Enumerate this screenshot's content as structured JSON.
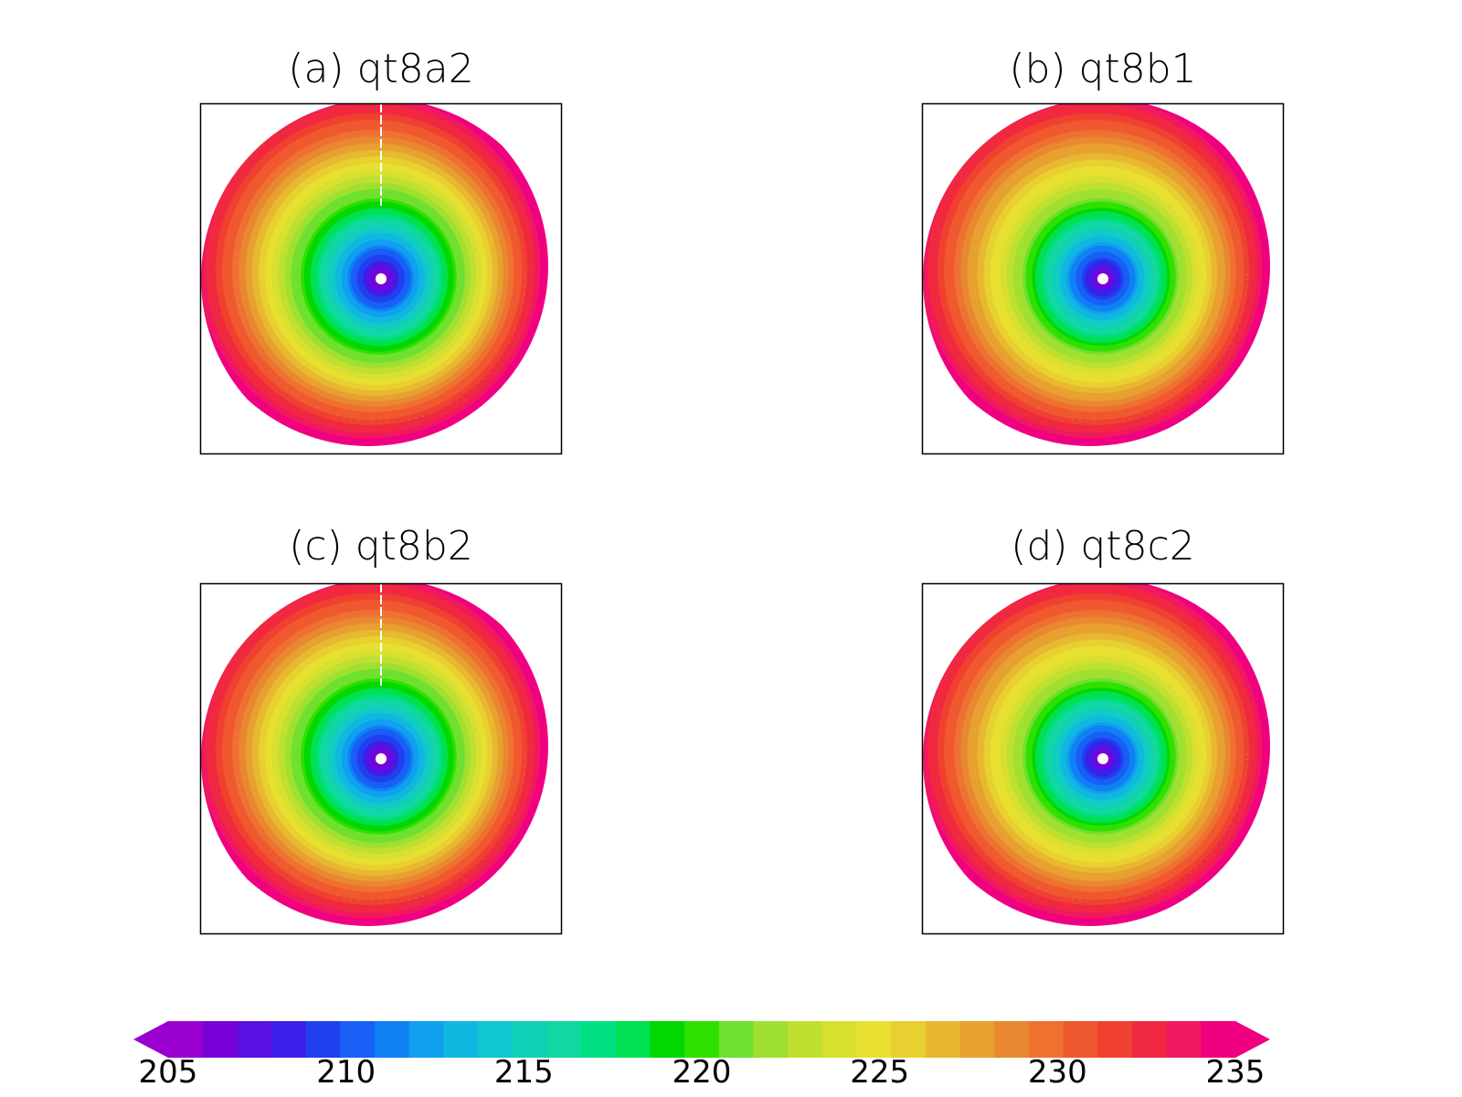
{
  "chart_data": {
    "type": "heatmap",
    "projection": "polar-stereographic",
    "panels": [
      {
        "title": "(a)  qt8a2",
        "center_value": 205,
        "gradient": [
          208,
          221,
          231,
          236
        ],
        "dateline_dashes": true
      },
      {
        "title": "(b)  qt8b1",
        "center_value": 205,
        "gradient": [
          209,
          222,
          231,
          236
        ],
        "dateline_dashes": false
      },
      {
        "title": "(c)  qt8b2",
        "center_value": 205,
        "gradient": [
          208,
          221,
          231,
          236
        ],
        "dateline_dashes": true
      },
      {
        "title": "(d)  qt8c2",
        "center_value": 205,
        "gradient": [
          209,
          222,
          231,
          236
        ],
        "dateline_dashes": false
      }
    ],
    "colorbar": {
      "min": 205,
      "max": 235,
      "step": 1,
      "tick_labels": [
        "205",
        "210",
        "215",
        "220",
        "225",
        "230",
        "235"
      ],
      "extend": "both",
      "colors": [
        "#9a00cf",
        "#7a00d8",
        "#5a10e0",
        "#3a20e8",
        "#2040f0",
        "#1860f5",
        "#1080f5",
        "#10a0f0",
        "#10b8e0",
        "#10c8d0",
        "#10d0b8",
        "#10d8a0",
        "#00e080",
        "#00e050",
        "#00d800",
        "#30e000",
        "#70e030",
        "#a0e030",
        "#c0e030",
        "#d8e030",
        "#e8e030",
        "#e8d030",
        "#e8b830",
        "#e8a030",
        "#e88830",
        "#f07030",
        "#f05830",
        "#f04030",
        "#f02840",
        "#f01860",
        "#f00080"
      ]
    }
  }
}
